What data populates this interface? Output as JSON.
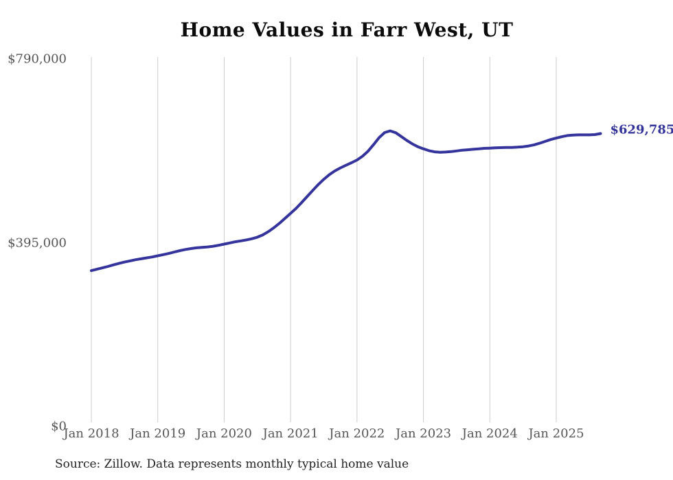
{
  "chart_data": {
    "type": "line",
    "title": "Home Values in Farr West, UT",
    "source_note": "Source: Zillow. Data represents monthly typical home value",
    "end_label": "$629,785",
    "end_value": 629785,
    "line_color": "#34349c",
    "grid_color": "#cccccc",
    "grid": "vertical-only",
    "legend": "none",
    "ylim": [
      0,
      790000
    ],
    "y_ticks": [
      {
        "label": "$790,000",
        "value": 790000
      },
      {
        "label": "$395,000",
        "value": 395000
      },
      {
        "label": "$0",
        "value": 0
      }
    ],
    "x_tick_labels": [
      "Jan 2018",
      "Jan 2019",
      "Jan 2020",
      "Jan 2021",
      "Jan 2022",
      "Jan 2023",
      "Jan 2024",
      "Jan 2025"
    ],
    "x": [
      "2018-01",
      "2018-02",
      "2018-03",
      "2018-04",
      "2018-05",
      "2018-06",
      "2018-07",
      "2018-08",
      "2018-09",
      "2018-10",
      "2018-11",
      "2018-12",
      "2019-01",
      "2019-02",
      "2019-03",
      "2019-04",
      "2019-05",
      "2019-06",
      "2019-07",
      "2019-08",
      "2019-09",
      "2019-10",
      "2019-11",
      "2019-12",
      "2020-01",
      "2020-02",
      "2020-03",
      "2020-04",
      "2020-05",
      "2020-06",
      "2020-07",
      "2020-08",
      "2020-09",
      "2020-10",
      "2020-11",
      "2020-12",
      "2021-01",
      "2021-02",
      "2021-03",
      "2021-04",
      "2021-05",
      "2021-06",
      "2021-07",
      "2021-08",
      "2021-09",
      "2021-10",
      "2021-11",
      "2021-12",
      "2022-01",
      "2022-02",
      "2022-03",
      "2022-04",
      "2022-05",
      "2022-06",
      "2022-07",
      "2022-08",
      "2022-09",
      "2022-10",
      "2022-11",
      "2022-12",
      "2023-01",
      "2023-02",
      "2023-03",
      "2023-04",
      "2023-05",
      "2023-06",
      "2023-07",
      "2023-08",
      "2023-09",
      "2023-10",
      "2023-11",
      "2023-12",
      "2024-01",
      "2024-02",
      "2024-03",
      "2024-04",
      "2024-05",
      "2024-06",
      "2024-07",
      "2024-08",
      "2024-09",
      "2024-10",
      "2024-11",
      "2024-12",
      "2025-01",
      "2025-02",
      "2025-03",
      "2025-04",
      "2025-05",
      "2025-06",
      "2025-07",
      "2025-08",
      "2025-09"
    ],
    "values": [
      335000,
      338000,
      341000,
      344000,
      347500,
      350500,
      353500,
      356000,
      358500,
      360500,
      362500,
      364500,
      367000,
      369500,
      372000,
      375000,
      378000,
      380500,
      382500,
      384000,
      385000,
      386000,
      387500,
      389500,
      392000,
      394500,
      397000,
      399000,
      401000,
      403500,
      407000,
      412000,
      419000,
      427500,
      437000,
      447500,
      458000,
      469000,
      481500,
      494500,
      507500,
      520000,
      531500,
      541500,
      549500,
      556000,
      561500,
      567000,
      573000,
      581000,
      592000,
      606000,
      621000,
      632000,
      635500,
      631500,
      623500,
      615000,
      607500,
      601500,
      597000,
      593000,
      590500,
      589500,
      590000,
      591000,
      592500,
      594000,
      595000,
      596000,
      597000,
      598000,
      598500,
      599000,
      599500,
      600000,
      600000,
      600500,
      601500,
      603000,
      605500,
      609000,
      613000,
      617000,
      620000,
      623000,
      625500,
      626500,
      627000,
      627000,
      627000,
      627500,
      629785
    ]
  }
}
